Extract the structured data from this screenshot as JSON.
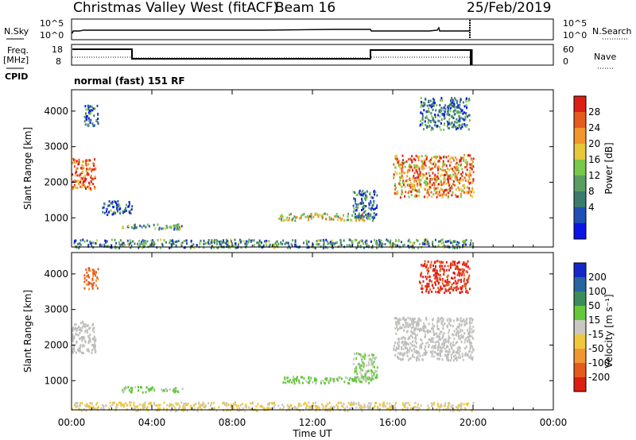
{
  "header": {
    "title": "Christmas Valley West (fitACF)",
    "beam": "Beam 16",
    "date": "25/Feb/2019",
    "program": "normal (fast) 151 RF"
  },
  "side_labels": {
    "nsky": "N.Sky",
    "nsearch": "N.Search",
    "freq_line1": "Freq.",
    "freq_line2": "[MHz]",
    "nave": "Nave",
    "cpid": "CPID"
  },
  "noise_panel": {
    "left_ticks": [
      "10^5",
      "10^0"
    ],
    "right_ticks": [
      "10^5",
      "10^0"
    ]
  },
  "freq_panel": {
    "left_ticks": [
      "18",
      "8"
    ],
    "right_ticks": [
      "60",
      "0"
    ]
  },
  "colors": {
    "power_scale": [
      "#0a14e6",
      "#1e4fb4",
      "#3c7a6e",
      "#5a9e64",
      "#78c84a",
      "#e6c83c",
      "#f0962d",
      "#e65a1e",
      "#dc1e14"
    ],
    "velocity_scale": [
      "#1428c8",
      "#2864a0",
      "#3c8c5a",
      "#64c83c",
      "#c8c8c0",
      "#f0c83c",
      "#f09632",
      "#e65a1e",
      "#dc1e14"
    ],
    "ground": "#bdbdbd"
  },
  "chart_data": [
    {
      "type": "heatmap",
      "panel": "power",
      "ylabel": "Slant Range [km]",
      "ylim": [
        180,
        4600
      ],
      "yticks": [
        1000,
        2000,
        3000,
        4000
      ],
      "xticks": [
        "00:00",
        "04:00",
        "08:00",
        "12:00",
        "16:00",
        "20:00",
        "00:00"
      ],
      "xrange_hours": [
        0,
        24
      ],
      "colorbar": {
        "label": "Power [dB]",
        "ticks": [
          "28",
          "24",
          "20",
          "16",
          "12",
          "8",
          "4"
        ],
        "range": [
          0,
          30
        ]
      },
      "regions": [
        {
          "t": [
            0.0,
            1.2
          ],
          "r": [
            1800,
            2700
          ],
          "level": 26
        },
        {
          "t": [
            0.6,
            1.3
          ],
          "r": [
            3600,
            4200
          ],
          "level": 6
        },
        {
          "t": [
            2.5,
            5.5
          ],
          "r": [
            700,
            850
          ],
          "level": 10
        },
        {
          "t": [
            1.5,
            3.0
          ],
          "r": [
            1100,
            1500
          ],
          "level": 6
        },
        {
          "t": [
            10.3,
            15.0
          ],
          "r": [
            950,
            1150
          ],
          "level": 16
        },
        {
          "t": [
            14.0,
            15.2
          ],
          "r": [
            1000,
            1800
          ],
          "level": 8
        },
        {
          "t": [
            16.0,
            20.0
          ],
          "r": [
            1600,
            2800
          ],
          "level": 22
        },
        {
          "t": [
            17.3,
            19.8
          ],
          "r": [
            3500,
            4400
          ],
          "level": 8
        },
        {
          "t": [
            0.0,
            20.0
          ],
          "r": [
            180,
            420
          ],
          "level": 10
        }
      ]
    },
    {
      "type": "heatmap",
      "panel": "velocity",
      "ylabel": "Slant Range [km]",
      "ylim": [
        180,
        4600
      ],
      "yticks": [
        1000,
        2000,
        3000,
        4000
      ],
      "xticks": [
        "00:00",
        "04:00",
        "08:00",
        "12:00",
        "16:00",
        "20:00",
        "00:00"
      ],
      "xlabel": "Time UT",
      "xrange_hours": [
        0,
        24
      ],
      "colorbar": {
        "label": "Velocity [m s⁻¹]",
        "ticks": [
          "200",
          "100",
          "50",
          "15",
          "-15",
          "-50",
          "-100",
          "-200"
        ],
        "range": [
          -250,
          250
        ]
      },
      "regions": [
        {
          "t": [
            0.0,
            1.2
          ],
          "r": [
            1800,
            2700
          ],
          "level": 0
        },
        {
          "t": [
            0.6,
            1.3
          ],
          "r": [
            3600,
            4200
          ],
          "level": -150
        },
        {
          "t": [
            2.5,
            5.5
          ],
          "r": [
            700,
            850
          ],
          "level": 40
        },
        {
          "t": [
            10.3,
            15.0
          ],
          "r": [
            950,
            1150
          ],
          "level": 40
        },
        {
          "t": [
            14.0,
            15.2
          ],
          "r": [
            1000,
            1800
          ],
          "level": 30
        },
        {
          "t": [
            16.0,
            20.0
          ],
          "r": [
            1600,
            2800
          ],
          "level": 0
        },
        {
          "t": [
            17.3,
            19.8
          ],
          "r": [
            3500,
            4400
          ],
          "level": -200
        },
        {
          "t": [
            0.0,
            20.0
          ],
          "r": [
            180,
            420
          ],
          "level": -30
        }
      ]
    }
  ]
}
